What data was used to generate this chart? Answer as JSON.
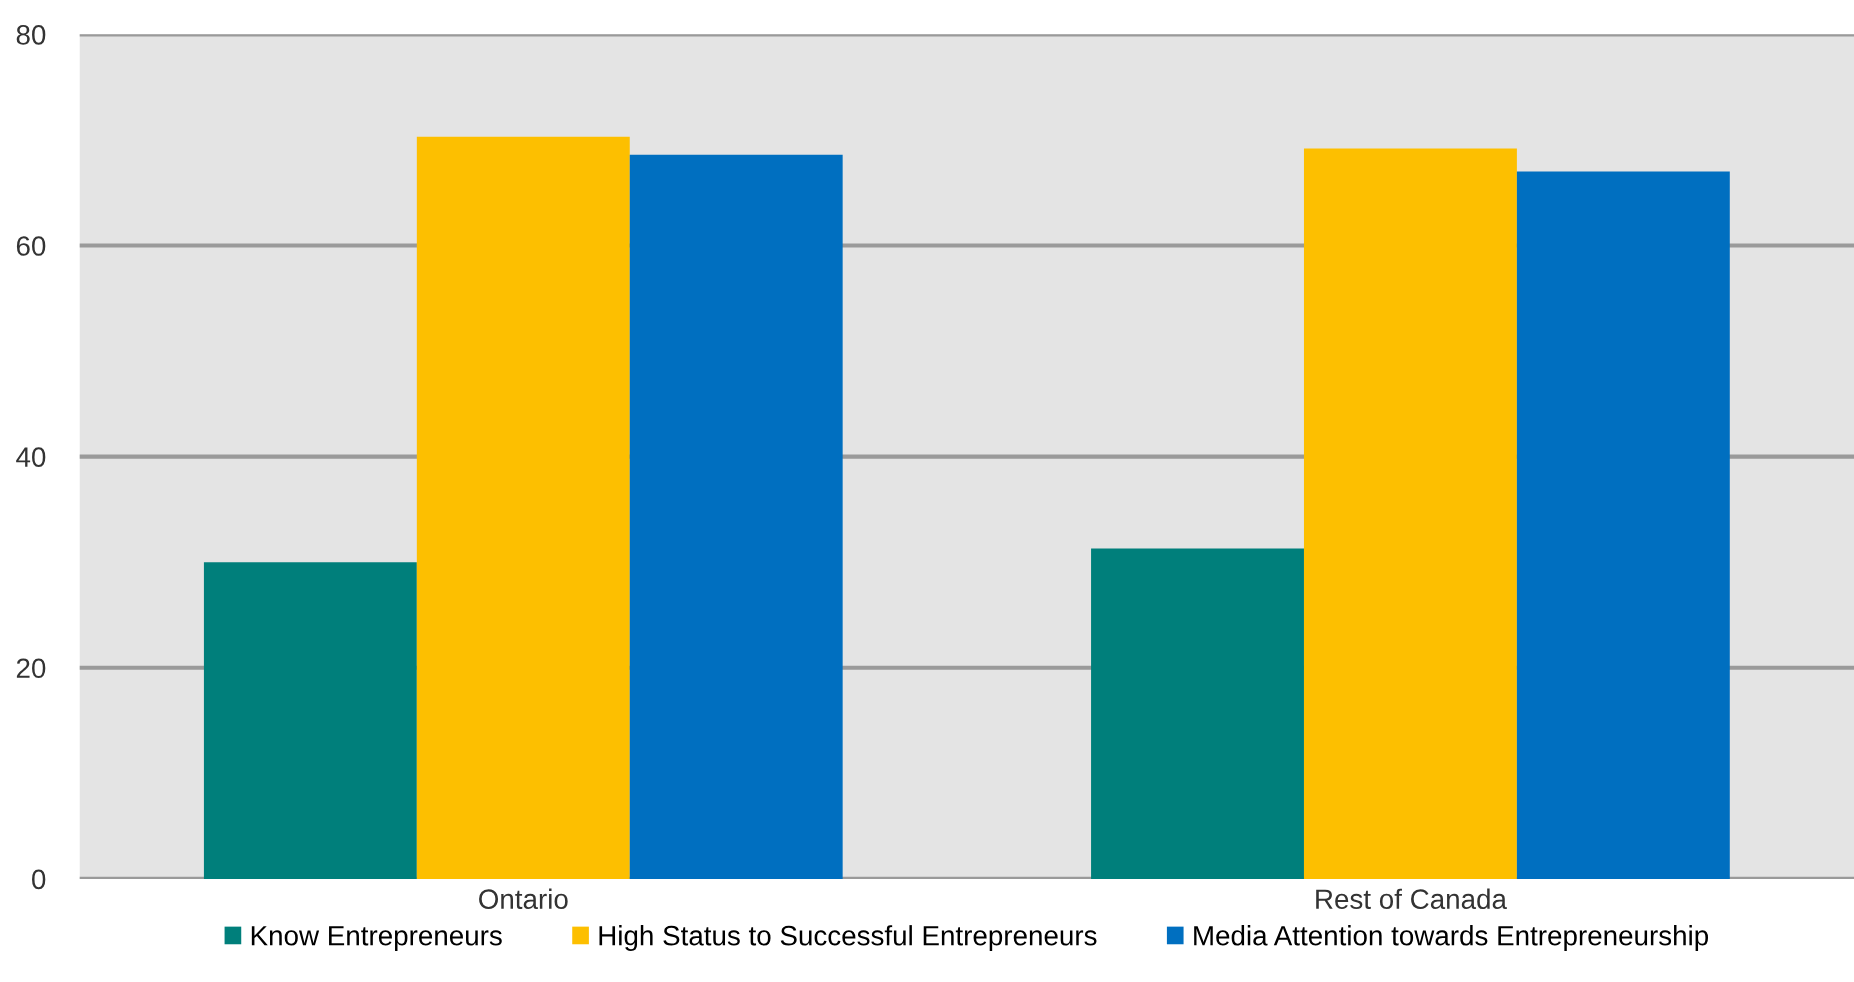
{
  "chart_data": {
    "type": "bar",
    "categories": [
      "Ontario",
      "Rest of Canada"
    ],
    "series": [
      {
        "name": "Know Entrepreneurs",
        "color": "#007f7b",
        "values": [
          30.0,
          31.3
        ]
      },
      {
        "name": "High Status to Successful Entrepreneurs",
        "color": "#fdbf00",
        "values": [
          70.3,
          69.2
        ]
      },
      {
        "name": "Media Attention towards Entrepreneurship",
        "color": "#006fc0",
        "values": [
          68.6,
          67.0
        ]
      }
    ],
    "ylim": [
      0,
      80
    ],
    "yticks": [
      0,
      20,
      40,
      60,
      80
    ],
    "grid": "y",
    "legend": "bottom"
  }
}
